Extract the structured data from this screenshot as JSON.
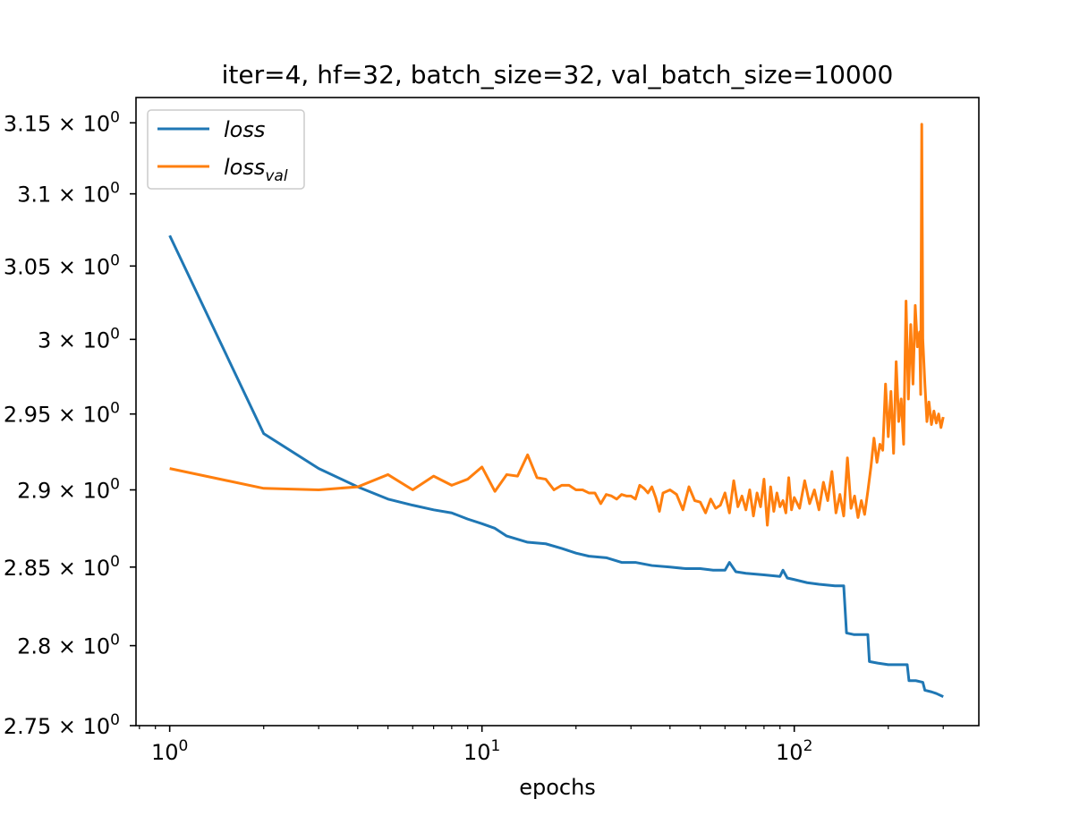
{
  "chart_data": {
    "type": "line",
    "title": "iter=4, hf=32, batch_size=32, val_batch_size=10000",
    "xlabel": "epochs",
    "ylabel": "",
    "xscale": "log",
    "yscale": "log",
    "xlim": [
      0.78,
      390
    ],
    "ylim": [
      2.75,
      3.168
    ],
    "grid": false,
    "legend_position": "upper left",
    "x_ticks": [
      {
        "value": 1,
        "mantissa": "10",
        "exp": "0"
      },
      {
        "value": 10,
        "mantissa": "10",
        "exp": "1"
      },
      {
        "value": 100,
        "mantissa": "10",
        "exp": "2"
      }
    ],
    "y_ticks": [
      {
        "value": 2.75,
        "mantissa": "2.75 × 10",
        "exp": "0"
      },
      {
        "value": 2.8,
        "mantissa": "2.8 × 10",
        "exp": "0"
      },
      {
        "value": 2.85,
        "mantissa": "2.85 × 10",
        "exp": "0"
      },
      {
        "value": 2.9,
        "mantissa": "2.9 × 10",
        "exp": "0"
      },
      {
        "value": 2.95,
        "mantissa": "2.95 × 10",
        "exp": "0"
      },
      {
        "value": 3.0,
        "mantissa": "3 × 10",
        "exp": "0"
      },
      {
        "value": 3.05,
        "mantissa": "3.05 × 10",
        "exp": "0"
      },
      {
        "value": 3.1,
        "mantissa": "3.1 × 10",
        "exp": "0"
      },
      {
        "value": 3.15,
        "mantissa": "3.15 × 10",
        "exp": "0"
      }
    ],
    "series": [
      {
        "name": "loss",
        "label_base": "loss",
        "label_sub": "",
        "color": "#1f77b4",
        "points": [
          [
            1,
            3.071
          ],
          [
            2,
            2.937
          ],
          [
            3,
            2.914
          ],
          [
            4,
            2.902
          ],
          [
            5,
            2.894
          ],
          [
            6,
            2.89
          ],
          [
            7,
            2.887
          ],
          [
            8,
            2.885
          ],
          [
            9,
            2.881
          ],
          [
            10,
            2.878
          ],
          [
            11,
            2.875
          ],
          [
            12,
            2.87
          ],
          [
            14,
            2.866
          ],
          [
            16,
            2.865
          ],
          [
            18,
            2.862
          ],
          [
            20,
            2.859
          ],
          [
            22,
            2.857
          ],
          [
            25,
            2.856
          ],
          [
            28,
            2.853
          ],
          [
            31,
            2.853
          ],
          [
            35,
            2.851
          ],
          [
            40,
            2.85
          ],
          [
            45,
            2.849
          ],
          [
            50,
            2.849
          ],
          [
            55,
            2.848
          ],
          [
            60,
            2.848
          ],
          [
            62,
            2.853
          ],
          [
            65,
            2.847
          ],
          [
            70,
            2.846
          ],
          [
            80,
            2.845
          ],
          [
            90,
            2.844
          ],
          [
            92,
            2.848
          ],
          [
            95,
            2.843
          ],
          [
            100,
            2.842
          ],
          [
            110,
            2.84
          ],
          [
            120,
            2.839
          ],
          [
            135,
            2.838
          ],
          [
            144,
            2.838
          ],
          [
            147,
            2.808
          ],
          [
            155,
            2.807
          ],
          [
            165,
            2.807
          ],
          [
            172,
            2.807
          ],
          [
            174,
            2.79
          ],
          [
            185,
            2.789
          ],
          [
            200,
            2.788
          ],
          [
            215,
            2.788
          ],
          [
            230,
            2.788
          ],
          [
            233,
            2.778
          ],
          [
            245,
            2.778
          ],
          [
            258,
            2.777
          ],
          [
            262,
            2.772
          ],
          [
            275,
            2.771
          ],
          [
            285,
            2.77
          ],
          [
            300,
            2.768
          ]
        ]
      },
      {
        "name": "loss_val",
        "label_base": "loss",
        "label_sub": "val",
        "color": "#ff7f0e",
        "points": [
          [
            1,
            2.914
          ],
          [
            2,
            2.901
          ],
          [
            3,
            2.9
          ],
          [
            4,
            2.902
          ],
          [
            5,
            2.91
          ],
          [
            6,
            2.9
          ],
          [
            7,
            2.909
          ],
          [
            8,
            2.903
          ],
          [
            9,
            2.907
          ],
          [
            10,
            2.915
          ],
          [
            11,
            2.899
          ],
          [
            12,
            2.91
          ],
          [
            13,
            2.909
          ],
          [
            14,
            2.923
          ],
          [
            15,
            2.908
          ],
          [
            16,
            2.907
          ],
          [
            17,
            2.9
          ],
          [
            18,
            2.903
          ],
          [
            19,
            2.903
          ],
          [
            20,
            2.9
          ],
          [
            21,
            2.9
          ],
          [
            22,
            2.898
          ],
          [
            23,
            2.898
          ],
          [
            24,
            2.891
          ],
          [
            25,
            2.897
          ],
          [
            26,
            2.896
          ],
          [
            27,
            2.894
          ],
          [
            28,
            2.897
          ],
          [
            29,
            2.896
          ],
          [
            30,
            2.896
          ],
          [
            31,
            2.894
          ],
          [
            32,
            2.903
          ],
          [
            33,
            2.901
          ],
          [
            34,
            2.898
          ],
          [
            35,
            2.902
          ],
          [
            36,
            2.895
          ],
          [
            37,
            2.886
          ],
          [
            38,
            2.898
          ],
          [
            40,
            2.9
          ],
          [
            42,
            2.897
          ],
          [
            44,
            2.887
          ],
          [
            46,
            2.902
          ],
          [
            48,
            2.893
          ],
          [
            50,
            2.892
          ],
          [
            52,
            2.885
          ],
          [
            54,
            2.894
          ],
          [
            56,
            2.888
          ],
          [
            58,
            2.89
          ],
          [
            60,
            2.898
          ],
          [
            62,
            2.885
          ],
          [
            64,
            2.906
          ],
          [
            66,
            2.889
          ],
          [
            68,
            2.896
          ],
          [
            70,
            2.887
          ],
          [
            72,
            2.9
          ],
          [
            74,
            2.883
          ],
          [
            76,
            2.898
          ],
          [
            78,
            2.889
          ],
          [
            80,
            2.907
          ],
          [
            82,
            2.877
          ],
          [
            84,
            2.902
          ],
          [
            86,
            2.886
          ],
          [
            88,
            2.898
          ],
          [
            90,
            2.889
          ],
          [
            92,
            2.893
          ],
          [
            94,
            2.885
          ],
          [
            96,
            2.908
          ],
          [
            98,
            2.887
          ],
          [
            100,
            2.895
          ],
          [
            104,
            2.888
          ],
          [
            108,
            2.906
          ],
          [
            112,
            2.891
          ],
          [
            116,
            2.9
          ],
          [
            120,
            2.887
          ],
          [
            124,
            2.905
          ],
          [
            128,
            2.893
          ],
          [
            132,
            2.912
          ],
          [
            136,
            2.885
          ],
          [
            140,
            2.897
          ],
          [
            144,
            2.883
          ],
          [
            148,
            2.921
          ],
          [
            152,
            2.888
          ],
          [
            156,
            2.896
          ],
          [
            160,
            2.882
          ],
          [
            164,
            2.893
          ],
          [
            168,
            2.884
          ],
          [
            172,
            2.899
          ],
          [
            176,
            2.915
          ],
          [
            180,
            2.934
          ],
          [
            184,
            2.918
          ],
          [
            188,
            2.93
          ],
          [
            192,
            2.926
          ],
          [
            196,
            2.97
          ],
          [
            200,
            2.935
          ],
          [
            204,
            2.965
          ],
          [
            208,
            2.924
          ],
          [
            212,
            2.985
          ],
          [
            216,
            2.945
          ],
          [
            220,
            2.96
          ],
          [
            224,
            2.93
          ],
          [
            228,
            3.026
          ],
          [
            232,
            2.96
          ],
          [
            236,
            3.01
          ],
          [
            240,
            2.97
          ],
          [
            244,
            3.023
          ],
          [
            248,
            2.995
          ],
          [
            252,
            3.005
          ],
          [
            254,
            2.963
          ],
          [
            256,
            3.149
          ],
          [
            258,
            3.0
          ],
          [
            262,
            2.97
          ],
          [
            266,
            2.945
          ],
          [
            270,
            2.958
          ],
          [
            275,
            2.943
          ],
          [
            280,
            2.952
          ],
          [
            285,
            2.944
          ],
          [
            290,
            2.95
          ],
          [
            295,
            2.941
          ],
          [
            300,
            2.948
          ]
        ]
      }
    ]
  }
}
